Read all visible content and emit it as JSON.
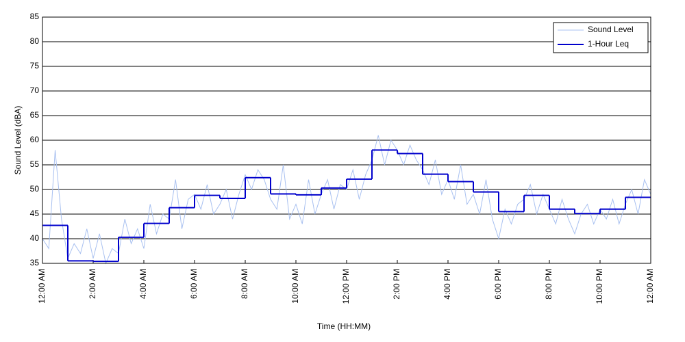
{
  "chart_data": {
    "type": "line",
    "xlabel": "Time (HH:MM)",
    "ylabel": "Sound Level (dBA)",
    "xlim": [
      0,
      24
    ],
    "ylim": [
      35,
      85
    ],
    "yticks": [
      35,
      40,
      45,
      50,
      55,
      60,
      65,
      70,
      75,
      80,
      85
    ],
    "xticks": [
      {
        "value": 0,
        "label": "12:00 AM"
      },
      {
        "value": 2,
        "label": "2:00 AM"
      },
      {
        "value": 4,
        "label": "4:00 AM"
      },
      {
        "value": 6,
        "label": "6:00 AM"
      },
      {
        "value": 8,
        "label": "8:00 AM"
      },
      {
        "value": 10,
        "label": "10:00 AM"
      },
      {
        "value": 12,
        "label": "12:00 PM"
      },
      {
        "value": 14,
        "label": "2:00 PM"
      },
      {
        "value": 16,
        "label": "4:00 PM"
      },
      {
        "value": 18,
        "label": "6:00 PM"
      },
      {
        "value": 20,
        "label": "8:00 PM"
      },
      {
        "value": 22,
        "label": "10:00 PM"
      },
      {
        "value": 24,
        "label": "12:00 AM"
      }
    ],
    "grid": true,
    "legend": "upper right",
    "series": [
      {
        "name": "Sound Level",
        "color": "#a8c0f0",
        "style": "line",
        "x": [
          0,
          0.25,
          0.5,
          0.75,
          1,
          1.25,
          1.5,
          1.75,
          2,
          2.25,
          2.5,
          2.75,
          3,
          3.25,
          3.5,
          3.75,
          4,
          4.25,
          4.5,
          4.75,
          5,
          5.25,
          5.5,
          5.75,
          6,
          6.25,
          6.5,
          6.75,
          7,
          7.25,
          7.5,
          7.75,
          8,
          8.25,
          8.5,
          8.75,
          9,
          9.25,
          9.5,
          9.75,
          10,
          10.25,
          10.5,
          10.75,
          11,
          11.25,
          11.5,
          11.75,
          12,
          12.25,
          12.5,
          12.75,
          13,
          13.25,
          13.5,
          13.75,
          14,
          14.25,
          14.5,
          14.75,
          15,
          15.25,
          15.5,
          15.75,
          16,
          16.25,
          16.5,
          16.75,
          17,
          17.25,
          17.5,
          17.75,
          18,
          18.25,
          18.5,
          18.75,
          19,
          19.25,
          19.5,
          19.75,
          20,
          20.25,
          20.5,
          20.75,
          21,
          21.25,
          21.5,
          21.75,
          22,
          22.25,
          22.5,
          22.75,
          23,
          23.25,
          23.5,
          23.75,
          24
        ],
        "values": [
          40,
          38,
          58,
          44,
          36,
          39,
          37,
          42,
          36,
          41,
          35,
          38,
          37,
          44,
          39,
          42,
          38,
          47,
          41,
          45,
          44,
          52,
          42,
          48,
          49,
          46,
          51,
          45,
          47,
          50,
          44,
          49,
          53,
          50,
          54,
          52,
          48,
          46,
          55,
          44,
          47,
          43,
          52,
          45,
          49,
          52,
          46,
          51,
          50,
          54,
          48,
          53,
          56,
          61,
          55,
          60,
          58,
          55,
          59,
          56,
          54,
          51,
          56,
          49,
          52,
          48,
          55,
          47,
          49,
          45,
          52,
          44,
          40,
          46,
          43,
          47,
          48,
          51,
          45,
          49,
          46,
          43,
          48,
          44,
          41,
          45,
          47,
          43,
          46,
          44,
          48,
          43,
          47,
          50,
          45,
          52,
          49
        ]
      },
      {
        "name": "1-Hour Leq",
        "color": "#0000cc",
        "style": "step",
        "x": [
          0,
          1,
          2,
          3,
          4,
          5,
          6,
          7,
          8,
          9,
          10,
          11,
          12,
          13,
          14,
          15,
          16,
          17,
          18,
          19,
          20,
          21,
          22,
          23
        ],
        "values": [
          42.7,
          35.5,
          35.4,
          40.3,
          43.1,
          46.3,
          48.8,
          48.2,
          52.4,
          49.1,
          48.9,
          50.3,
          52.1,
          58.0,
          57.3,
          53.1,
          51.6,
          49.5,
          45.5,
          48.8,
          46.0,
          45.1,
          46.0,
          48.4
        ]
      }
    ]
  }
}
